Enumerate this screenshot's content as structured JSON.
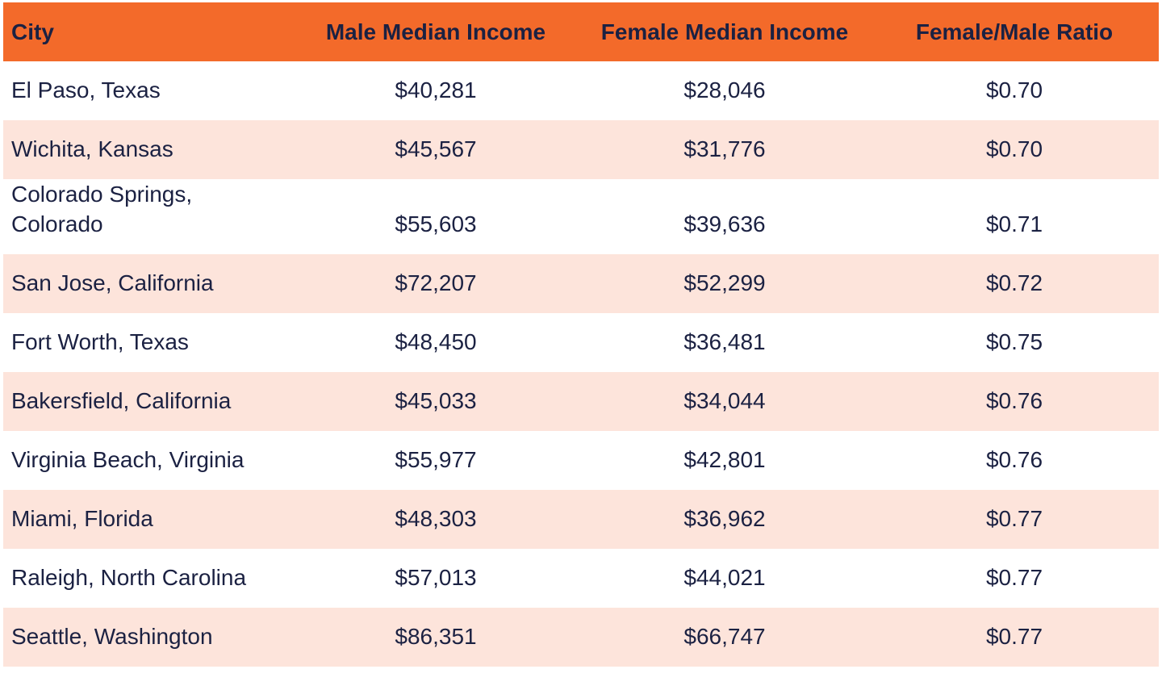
{
  "table": {
    "header": [
      "City",
      "Male Median Income",
      "Female Median Income",
      "Female/Male Ratio"
    ],
    "rows": [
      [
        "El Paso, Texas",
        "$40,281",
        "$28,046",
        "$0.70"
      ],
      [
        "Wichita, Kansas",
        "$45,567",
        "$31,776",
        "$0.70"
      ],
      [
        "Colorado Springs, Colorado",
        "$55,603",
        "$39,636",
        "$0.71"
      ],
      [
        "San Jose, California",
        "$72,207",
        "$52,299",
        "$0.72"
      ],
      [
        "Fort Worth, Texas",
        "$48,450",
        "$36,481",
        "$0.75"
      ],
      [
        "Bakersfield, California",
        "$45,033",
        "$34,044",
        "$0.76"
      ],
      [
        "Virginia Beach, Virginia",
        "$55,977",
        "$42,801",
        "$0.76"
      ],
      [
        "Miami, Florida",
        "$48,303",
        "$36,962",
        "$0.77"
      ],
      [
        "Raleigh, North Carolina",
        "$57,013",
        "$44,021",
        "$0.77"
      ],
      [
        "Seattle, Washington",
        "$86,351",
        "$66,747",
        "$0.77"
      ]
    ]
  }
}
